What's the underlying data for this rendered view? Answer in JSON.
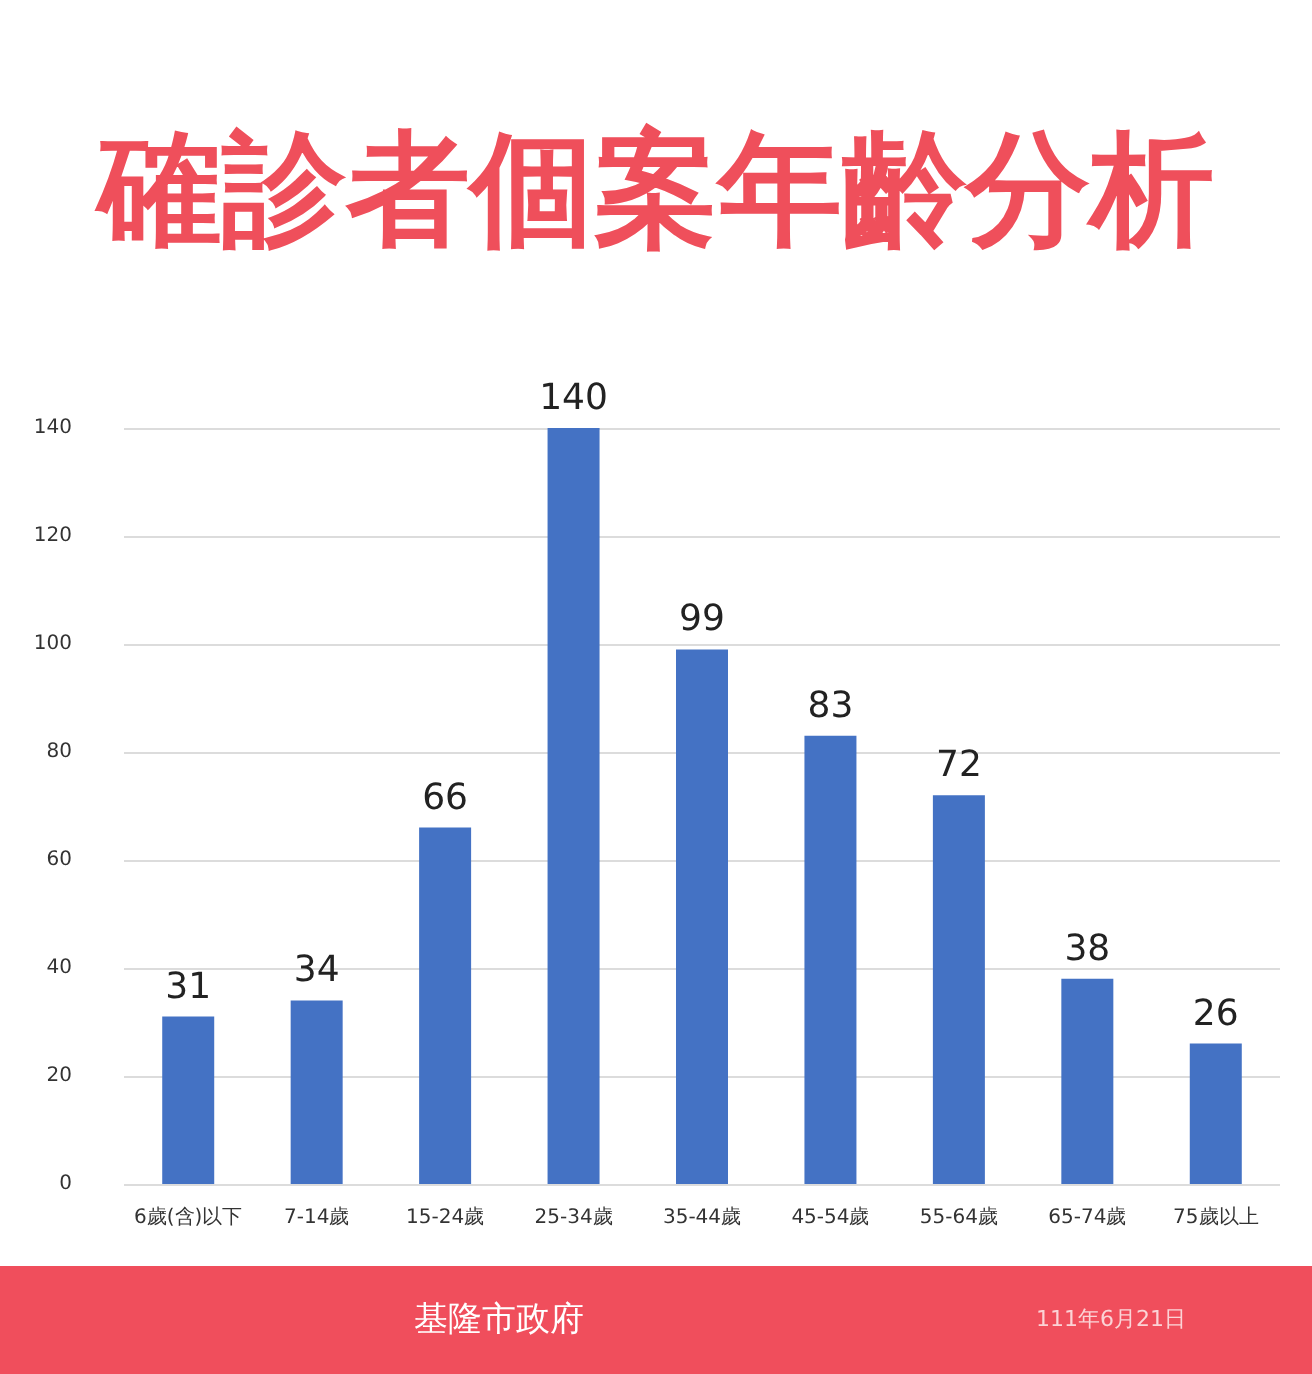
{
  "chart_data": {
    "type": "bar",
    "title": "確診者個案年齡分析",
    "categories": [
      "6歲(含)以下",
      "7-14歲",
      "15-24歲",
      "25-34歲",
      "35-44歲",
      "45-54歲",
      "55-64歲",
      "65-74歲",
      "75歲以上"
    ],
    "values": [
      31,
      34,
      66,
      140,
      99,
      83,
      72,
      38,
      26
    ],
    "color": "#4472c4",
    "ylim": [
      0,
      140
    ],
    "yticks": [
      0,
      20,
      40,
      60,
      80,
      100,
      120,
      140
    ],
    "grid": "y",
    "data_labels": true,
    "annotations": [
      "基隆市政府",
      "111年6月21日"
    ]
  }
}
